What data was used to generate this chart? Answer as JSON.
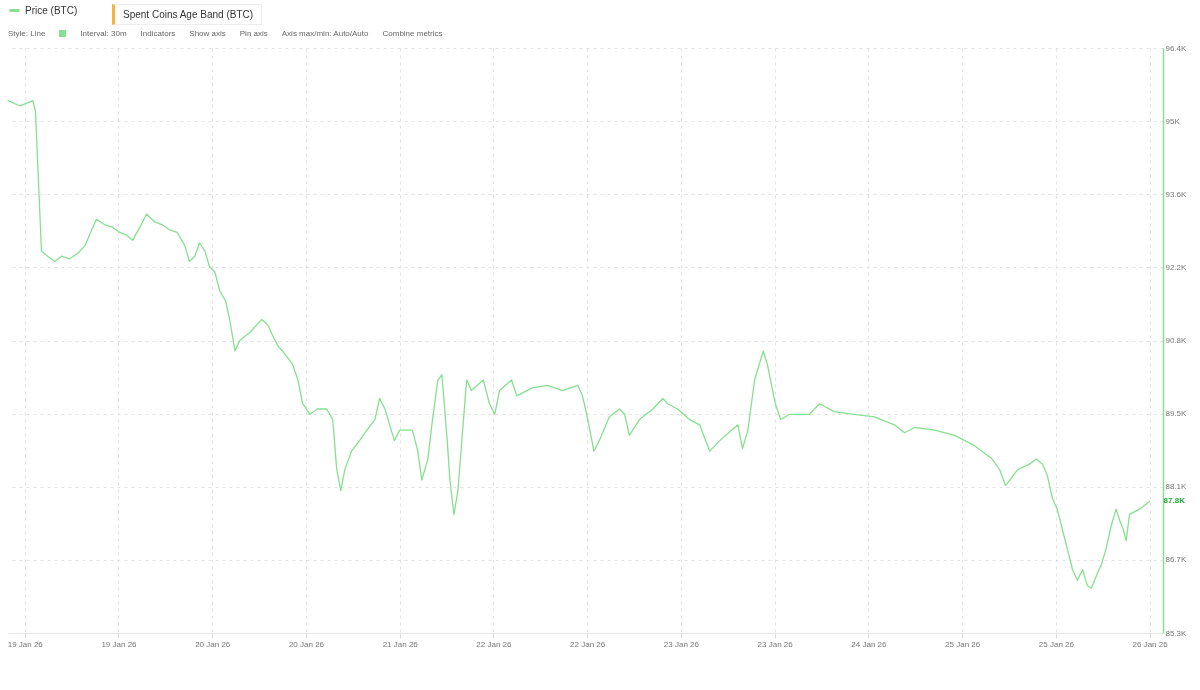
{
  "chart_data": {
    "type": "line",
    "legend": "top left",
    "grid": true,
    "marker": "none",
    "line_style": "solid",
    "xlim": [
      "--01-19T02:30",
      "--01-26T07:00"
    ],
    "xticks": [
      {
        "value": "--01-19T05:00",
        "label": "19 Jan 26"
      },
      {
        "value": "--01-19T19:00",
        "label": "19 Jan 26"
      },
      {
        "value": "--01-20T09:00",
        "label": "20 Jan 26"
      },
      {
        "value": "--01-20T23:00",
        "label": "20 Jan 26"
      },
      {
        "value": "--01-21T13:00",
        "label": "21 Jan 26"
      },
      {
        "value": "--01-22T03:00",
        "label": "22 Jan 26"
      },
      {
        "value": "--01-22T17:00",
        "label": "22 Jan 26"
      },
      {
        "value": "--01-23T07:00",
        "label": "23 Jan 26"
      },
      {
        "value": "--01-23T21:00",
        "label": "23 Jan 26"
      },
      {
        "value": "--01-24T11:00",
        "label": "24 Jan 26"
      },
      {
        "value": "--01-25T01:00",
        "label": "25 Jan 26"
      },
      {
        "value": "--01-25T15:00",
        "label": "25 Jan 26"
      },
      {
        "value": "--01-26T05:00",
        "label": "26 Jan 26"
      }
    ],
    "ylim": [
      85300,
      96400
    ],
    "yticks": [
      {
        "value": 85300,
        "label": "85.3K"
      },
      {
        "value": 86688,
        "label": "86.7K"
      },
      {
        "value": 88075,
        "label": "88.1K"
      },
      {
        "value": 89463,
        "label": "89.5K"
      },
      {
        "value": 90850,
        "label": "90.8K"
      },
      {
        "value": 92238,
        "label": "92.2K"
      },
      {
        "value": 93625,
        "label": "93.6K"
      },
      {
        "value": 95013,
        "label": "95K"
      },
      {
        "value": 96400,
        "label": "96.4K"
      }
    ],
    "annotations": [
      "Spent Coins Age Band (BTC)",
      "Style: Line",
      "Interval: 30m",
      "Indicators",
      "Show axis",
      "Pin axis",
      "Axis max/min: Auto/Auto",
      "Combine metrics",
      {
        "text": "87.8K",
        "x": "--01-26T05:00",
        "y": 87800
      }
    ],
    "series": [
      {
        "name": "Price (BTC)",
        "color": "#86e08f",
        "x": [
          "--01-19T02:30",
          "--01-19T04:18",
          "--01-19T06:12",
          "--01-19T06:36",
          "--01-19T07:30",
          "--01-19T08:24",
          "--01-19T09:30",
          "--01-19T10:30",
          "--01-19T11:42",
          "--01-19T12:54",
          "--01-19T14:00",
          "--01-19T15:00",
          "--01-19T15:42",
          "--01-19T16:54",
          "--01-19T18:06",
          "--01-19T19:12",
          "--01-19T20:12",
          "--01-19T21:06",
          "--01-19T22:12",
          "--01-19T23:12",
          "--01-20T00:24",
          "--01-20T01:30",
          "--01-20T02:36",
          "--01-20T03:48",
          "--01-20T04:54",
          "--01-20T05:36",
          "--01-20T06:24",
          "--01-20T07:06",
          "--01-20T07:54",
          "--01-20T08:36",
          "--01-20T09:24",
          "--01-20T10:06",
          "--01-20T11:00",
          "--01-20T11:36",
          "--01-20T12:24",
          "--01-20T13:06",
          "--01-20T14:36",
          "--01-20T16:24",
          "--01-20T17:18",
          "--01-20T18:00",
          "--01-20T18:48",
          "--01-20T19:48",
          "--01-20T21:00",
          "--01-20T21:48",
          "--01-20T22:30",
          "--01-20T23:36",
          "--01-21T00:42",
          "--01-21T02:06",
          "--01-21T03:00",
          "--01-21T03:36",
          "--01-21T04:12",
          "--01-21T04:48",
          "--01-21T05:48",
          "--01-21T07:00",
          "--01-21T08:06",
          "--01-21T09:18",
          "--01-21T10:00",
          "--01-21T10:48",
          "--01-21T11:30",
          "--01-21T12:12",
          "--01-21T13:00",
          "--01-21T14:54",
          "--01-21T15:42",
          "--01-21T16:18",
          "--01-21T17:12",
          "--01-21T17:54",
          "--01-21T18:42",
          "--01-21T19:18",
          "--01-21T20:06",
          "--01-21T20:30",
          "--01-21T21:06",
          "--01-21T21:42",
          "--01-21T22:24",
          "--01-21T23:00",
          "--01-21T23:42",
          "--01-22T01:30",
          "--01-22T02:24",
          "--01-22T03:12",
          "--01-22T03:54",
          "--01-22T05:42",
          "--01-22T06:30",
          "--01-22T08:48",
          "--01-22T11:06",
          "--01-22T13:18",
          "--01-22T15:36",
          "--01-22T16:18",
          "--01-22T17:06",
          "--01-22T18:00",
          "--01-22T18:48",
          "--01-22T20:18",
          "--01-22T21:48",
          "--01-22T22:36",
          "--01-22T23:18",
          "--01-23T00:48",
          "--01-23T02:48",
          "--01-23T04:18",
          "--01-23T05:00",
          "--01-23T06:30",
          "--01-23T08:18",
          "--01-23T09:48",
          "--01-23T11:18",
          "--01-23T12:48",
          "--01-23T14:36",
          "--01-23T15:30",
          "--01-23T16:12",
          "--01-23T17:00",
          "--01-23T18:00",
          "--01-23T19:18",
          "--01-23T19:54",
          "--01-23T21:06",
          "--01-23T21:54",
          "--01-23T23:12",
          "--01-24T02:12",
          "--01-24T03:42",
          "--01-24T05:54",
          "--01-24T08:54",
          "--01-24T11:54",
          "--01-24T14:54",
          "--01-24T16:24",
          "--01-24T17:54",
          "--01-24T20:54",
          "--01-24T23:54",
          "--01-25T02:54",
          "--01-25T05:30",
          "--01-25T06:36",
          "--01-25T07:30",
          "--01-25T09:18",
          "--01-25T11:00",
          "--01-25T12:06",
          "--01-25T13:00",
          "--01-25T13:42",
          "--01-25T14:30",
          "--01-25T15:12",
          "--01-25T16:00",
          "--01-25T16:42",
          "--01-25T17:30",
          "--01-25T18:12",
          "--01-25T19:00",
          "--01-25T19:42",
          "--01-25T20:18",
          "--01-25T21:06",
          "--01-25T21:48",
          "--01-25T22:30",
          "--01-25T23:18",
          "--01-26T00:00",
          "--01-26T00:30",
          "--01-26T01:06",
          "--01-26T01:30",
          "--01-26T02:00",
          "--01-26T03:30",
          "--01-26T05:00"
        ],
        "values": [
          95400,
          95300,
          95400,
          95200,
          92550,
          92450,
          92350,
          92450,
          92400,
          92500,
          92650,
          92950,
          93150,
          93050,
          93000,
          92900,
          92850,
          92750,
          93000,
          93250,
          93100,
          93050,
          92950,
          92900,
          92650,
          92350,
          92450,
          92700,
          92550,
          92250,
          92150,
          91800,
          91600,
          91250,
          90650,
          90850,
          91000,
          91250,
          91150,
          90950,
          90750,
          90600,
          90400,
          90100,
          89650,
          89450,
          89550,
          89550,
          89350,
          88400,
          88000,
          88400,
          88750,
          88950,
          89150,
          89350,
          89750,
          89550,
          89250,
          88950,
          89150,
          89150,
          88750,
          88200,
          88600,
          89350,
          90100,
          90200,
          88950,
          88200,
          87550,
          88000,
          89150,
          90100,
          89900,
          90100,
          89650,
          89450,
          89900,
          90100,
          89800,
          89950,
          90000,
          89900,
          90000,
          89800,
          89350,
          88750,
          88950,
          89400,
          89550,
          89450,
          89050,
          89350,
          89550,
          89750,
          89650,
          89550,
          89350,
          89250,
          88750,
          88950,
          89150,
          89250,
          88800,
          89150,
          90100,
          90650,
          90400,
          89650,
          89350,
          89450,
          89450,
          89650,
          89500,
          89450,
          89400,
          89250,
          89100,
          89200,
          89150,
          89050,
          88850,
          88600,
          88400,
          88100,
          88400,
          88500,
          88600,
          88500,
          88300,
          87850,
          87650,
          87250,
          86900,
          86500,
          86300,
          86500,
          86200,
          86150,
          86400,
          86600,
          86900,
          87350,
          87650,
          87450,
          87250,
          87050,
          87550,
          87650,
          87800
        ]
      }
    ]
  }
}
